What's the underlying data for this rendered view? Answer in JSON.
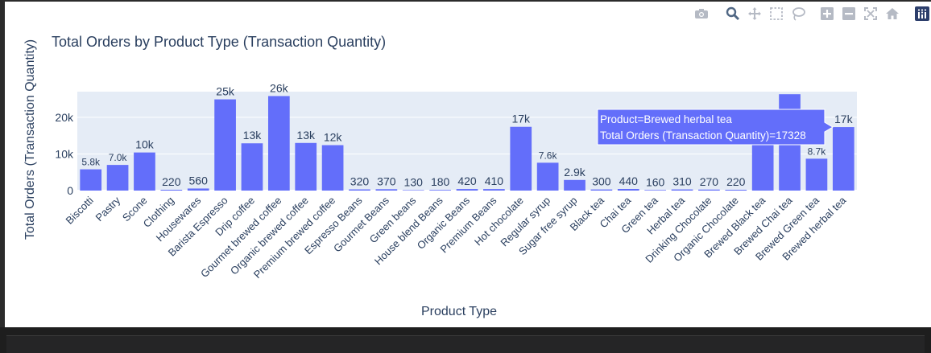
{
  "chart_data": {
    "type": "bar",
    "title": "Total Orders by Product Type (Transaction Quantity)",
    "xlabel": "Product Type",
    "ylabel": "Total Orders (Transaction Quantity)",
    "ylim": [
      0,
      27000
    ],
    "yticks": [
      0,
      10000,
      20000
    ],
    "ytick_labels": [
      "0",
      "10k",
      "20k"
    ],
    "grid": true,
    "bar_color": "#636efa",
    "plot_bg": "#e5ecf6",
    "categories": [
      "Biscotti",
      "Pastry",
      "Scone",
      "Clothing",
      "Housewares",
      "Barista Espresso",
      "Drip coffee",
      "Gourmet brewed coffee",
      "Organic brewed coffee",
      "Premium brewed coffee",
      "Espresso Beans",
      "Gourmet Beans",
      "Green beans",
      "House blend Beans",
      "Organic Beans",
      "Premium Beans",
      "Hot chocolate",
      "Regular syrup",
      "Sugar free syrup",
      "Black tea",
      "Chai tea",
      "Green tea",
      "Herbal tea",
      "Drinking Chocolate",
      "Organic Chocolate",
      "Brewed Black tea",
      "Brewed Chai tea",
      "Brewed Green tea",
      "Brewed herbal tea"
    ],
    "values": [
      5800,
      7000,
      10400,
      220,
      560,
      24900,
      12900,
      25800,
      13000,
      12400,
      320,
      370,
      130,
      180,
      420,
      410,
      17400,
      7600,
      2900,
      300,
      440,
      160,
      310,
      270,
      220,
      17400,
      26300,
      8700,
      17328
    ],
    "value_labels": [
      "5.8k",
      "7.0k",
      "10k",
      "220",
      "560",
      "25k",
      "13k",
      "26k",
      "13k",
      "12k",
      "320",
      "370",
      "130",
      "180",
      "420",
      "410",
      "17k",
      "7.6k",
      "2.9k",
      "300",
      "440",
      "160",
      "310",
      "270",
      "220",
      "",
      "",
      "8.7k",
      "17k"
    ],
    "hover": {
      "product": "Brewed herbal tea",
      "line1": "Product=Brewed herbal tea",
      "line2": "Total Orders (Transaction Quantity)=17328"
    }
  },
  "modebar": {
    "icons": [
      "camera-icon",
      "zoom-icon",
      "pan-icon",
      "box-select-icon",
      "lasso-icon",
      "zoom-in-icon",
      "zoom-out-icon",
      "autoscale-icon",
      "reset-axes-icon",
      "plotly-logo-icon"
    ]
  }
}
